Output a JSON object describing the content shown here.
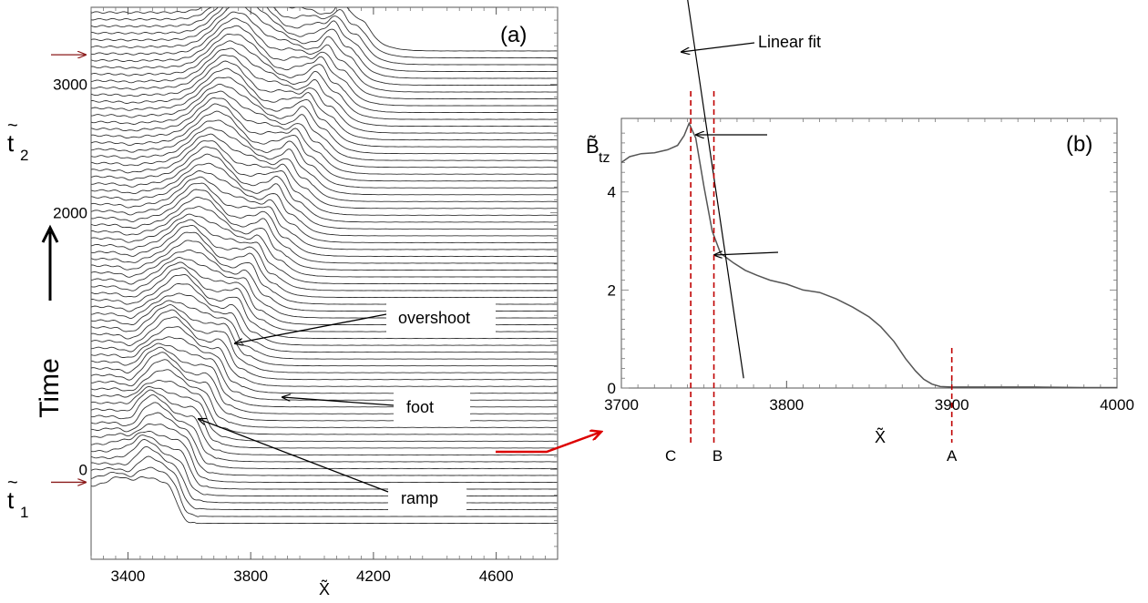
{
  "chart_data": [
    {
      "panel": "(a)",
      "type": "line",
      "description_style": "stacked profiles",
      "x_tick_labels": [
        "3400",
        "3800",
        "4200",
        "4600"
      ],
      "x_ticks": [
        3400,
        3800,
        4200,
        4600
      ],
      "xlim": [
        3280,
        4800
      ],
      "xlabel": "X̃",
      "ylabel": "Time",
      "y_tick_labels": [
        "0",
        "2000",
        "3000"
      ],
      "y_ticks": [
        0,
        2000,
        3000
      ],
      "ylim": [
        -700,
        3600
      ],
      "time_markers": [
        {
          "label_base": "t",
          "label_sub": "1",
          "time": -100
        },
        {
          "label_base": "t",
          "label_sub": "2",
          "time": 3230
        }
      ],
      "profile_count": 70,
      "profile_time_start": -420,
      "profile_time_end": 3260,
      "annotations": [
        "overshoot",
        "foot",
        "ramp"
      ],
      "color": "#333333"
    },
    {
      "panel": "(b)",
      "type": "line",
      "xlim": [
        3700,
        4000
      ],
      "ylim": [
        0,
        5.5
      ],
      "x_tick_labels": [
        "3700",
        "3800",
        "3900",
        "4000"
      ],
      "x_ticks": [
        3700,
        3800,
        3900,
        4000
      ],
      "y_tick_labels": [
        "0",
        "2",
        "4"
      ],
      "y_ticks": [
        0,
        2,
        4
      ],
      "xlabel": "X̃",
      "ylabel_base": "B̃",
      "ylabel_sub": "tz",
      "profile": {
        "x": [
          3700,
          3705,
          3712,
          3720,
          3728,
          3734,
          3738,
          3741,
          3745,
          3750,
          3755,
          3760,
          3768,
          3775,
          3782,
          3790,
          3800,
          3810,
          3820,
          3830,
          3840,
          3850,
          3857,
          3865,
          3872,
          3878,
          3883,
          3888,
          3893,
          3900,
          3920,
          3950,
          3980,
          4000
        ],
        "y": [
          4.6,
          4.72,
          4.78,
          4.8,
          4.86,
          4.95,
          5.15,
          5.4,
          5.1,
          4.1,
          3.2,
          2.75,
          2.55,
          2.4,
          2.3,
          2.2,
          2.12,
          2.0,
          1.95,
          1.82,
          1.65,
          1.45,
          1.25,
          0.95,
          0.6,
          0.35,
          0.18,
          0.08,
          0.03,
          0.02,
          0.02,
          0.02,
          0.01,
          0.01
        ]
      },
      "linear_fit": {
        "x": [
          3738,
          3774
        ],
        "y": [
          8.4,
          0.2
        ]
      },
      "linear_fit_label": "Linear fit",
      "markers": [
        {
          "label": "C",
          "x": 3742
        },
        {
          "label": "B",
          "x": 3756
        },
        {
          "label": "A",
          "x": 3900
        }
      ],
      "marker_color": "#c00000",
      "color": "#555555"
    }
  ],
  "connector_color": "#dd0000",
  "time_marker_color": "#8b1a1a"
}
